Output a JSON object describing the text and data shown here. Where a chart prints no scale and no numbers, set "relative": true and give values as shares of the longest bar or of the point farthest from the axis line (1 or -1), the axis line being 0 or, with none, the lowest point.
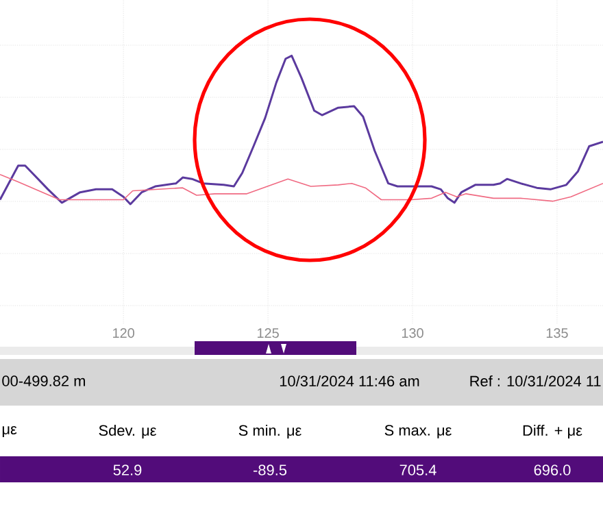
{
  "chart_data": {
    "type": "line",
    "relative": true,
    "xlim": [
      115.73,
      136.59
    ],
    "xticks": [
      120,
      125,
      130,
      135
    ],
    "grid": true,
    "series": [
      {
        "color": "#5b3a9e",
        "x": [
          115.73,
          116.36,
          116.6,
          117.39,
          117.87,
          118.5,
          119.05,
          119.61,
          120.0,
          120.24,
          120.63,
          121.1,
          121.82,
          122.05,
          122.37,
          122.76,
          123.47,
          123.82,
          124.11,
          124.5,
          124.9,
          125.29,
          125.61,
          125.82,
          126.16,
          126.6,
          126.87,
          127.43,
          127.98,
          128.29,
          128.69,
          129.16,
          129.48,
          129.95,
          130.66,
          130.98,
          131.22,
          131.45,
          131.69,
          132.17,
          132.8,
          133.03,
          133.27,
          133.74,
          134.3,
          134.77,
          135.32,
          135.72,
          136.11,
          136.59
        ],
        "values": [
          0.03,
          0.26,
          0.26,
          0.1,
          0.01,
          0.08,
          0.1,
          0.1,
          0.05,
          0,
          0.08,
          0.12,
          0.14,
          0.18,
          0.17,
          0.14,
          0.13,
          0.12,
          0.21,
          0.39,
          0.58,
          0.82,
          0.98,
          1,
          0.85,
          0.63,
          0.6,
          0.65,
          0.66,
          0.59,
          0.36,
          0.14,
          0.12,
          0.12,
          0.12,
          0.1,
          0.04,
          0.01,
          0.08,
          0.13,
          0.13,
          0.14,
          0.17,
          0.14,
          0.11,
          0.1,
          0.13,
          0.22,
          0.39,
          0.42
        ]
      },
      {
        "color": "#f06a82",
        "x": [
          115.73,
          116.36,
          117.79,
          120.0,
          120.32,
          122.05,
          122.53,
          123.16,
          124.27,
          125.69,
          126.48,
          127.43,
          127.9,
          128.37,
          128.92,
          129.95,
          130.66,
          131.14,
          131.53,
          131.85,
          132.8,
          133.74,
          134.85,
          135.48,
          136.59
        ],
        "values": [
          0.2,
          0.15,
          0.03,
          0.03,
          0.09,
          0.11,
          0.06,
          0.07,
          0.07,
          0.17,
          0.12,
          0.13,
          0.14,
          0.11,
          0.03,
          0.03,
          0.04,
          0.08,
          0.05,
          0.07,
          0.04,
          0.04,
          0.02,
          0.05,
          0.14
        ]
      }
    ],
    "annotations": [
      "00-499.82 m",
      "10/31/2024 11:46 am",
      "Ref : 10/31/2024 11",
      "με",
      "Sdev. με",
      "S min. με",
      "S max. με",
      "Diff. + με",
      "52.9",
      "-89.5",
      "705.4",
      "696.0"
    ]
  }
}
